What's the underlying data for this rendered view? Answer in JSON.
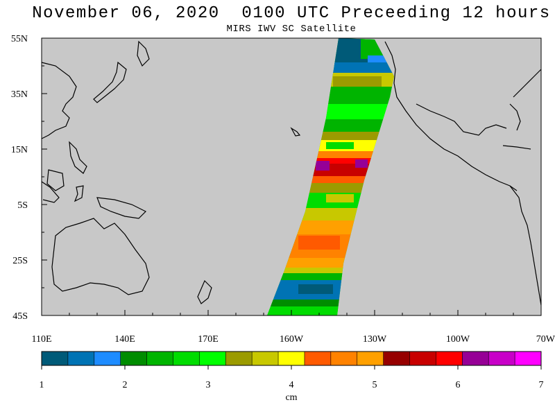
{
  "title": "November 06, 2020  0100 UTC Preceeding 12 hours",
  "subtitle": "MIRS IWV SC Satellite",
  "map": {
    "ocean_color": "#c8c8c8",
    "land_outline_color": "#000000",
    "lat_labels": [
      "55N",
      "35N",
      "15N",
      "5S",
      "25S",
      "45S"
    ],
    "lon_labels": [
      "110E",
      "140E",
      "170E",
      "160W",
      "130W",
      "100W",
      "70W"
    ]
  },
  "colorbar": {
    "colors": [
      "#005a78",
      "#0073b4",
      "#1e8cff",
      "#008c00",
      "#00b400",
      "#00dc00",
      "#00ff00",
      "#9b9b00",
      "#c8c800",
      "#ffff00",
      "#ff5a00",
      "#ff8200",
      "#ffa000",
      "#960000",
      "#c80000",
      "#ff0000",
      "#960096",
      "#c800c8",
      "#ff00ff"
    ],
    "tick_labels": [
      "1",
      "2",
      "3",
      "4",
      "5",
      "6",
      "7"
    ],
    "unit_label": "cm"
  }
}
